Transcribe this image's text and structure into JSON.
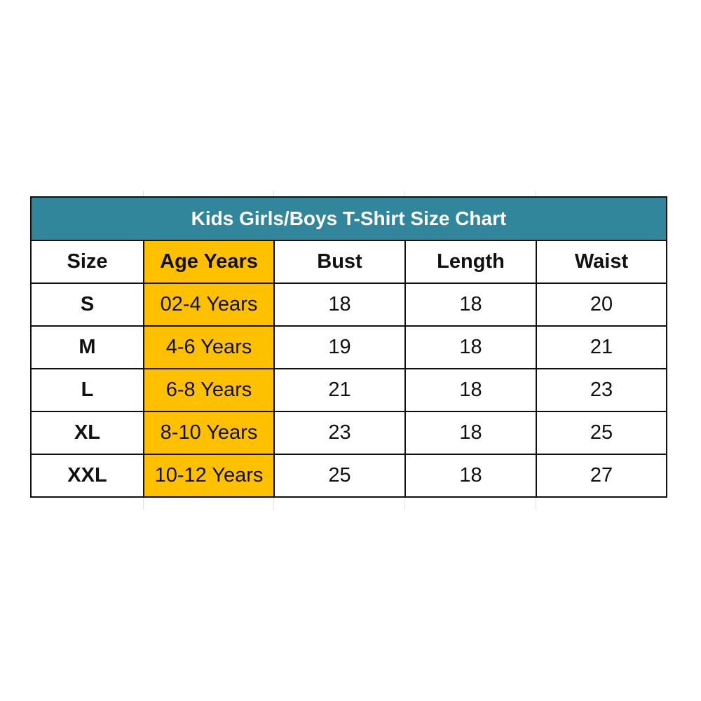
{
  "title": "Kids Girls/Boys T-Shirt Size Chart",
  "columns": [
    "Size",
    "Age Years",
    "Bust",
    "Length",
    "Waist"
  ],
  "rows": [
    {
      "size": "S",
      "age": "02-4 Years",
      "bust": "18",
      "length": "18",
      "waist": "20"
    },
    {
      "size": "M",
      "age": "4-6 Years",
      "bust": "19",
      "length": "18",
      "waist": "21"
    },
    {
      "size": "L",
      "age": "6-8 Years",
      "bust": "21",
      "length": "18",
      "waist": "23"
    },
    {
      "size": "XL",
      "age": "8-10 Years",
      "bust": "23",
      "length": "18",
      "waist": "25"
    },
    {
      "size": "XXL",
      "age": "10-12 Years",
      "bust": "25",
      "length": "18",
      "waist": "27"
    }
  ],
  "colors": {
    "title_bg": "#31869b",
    "age_column_bg": "#ffc000"
  }
}
